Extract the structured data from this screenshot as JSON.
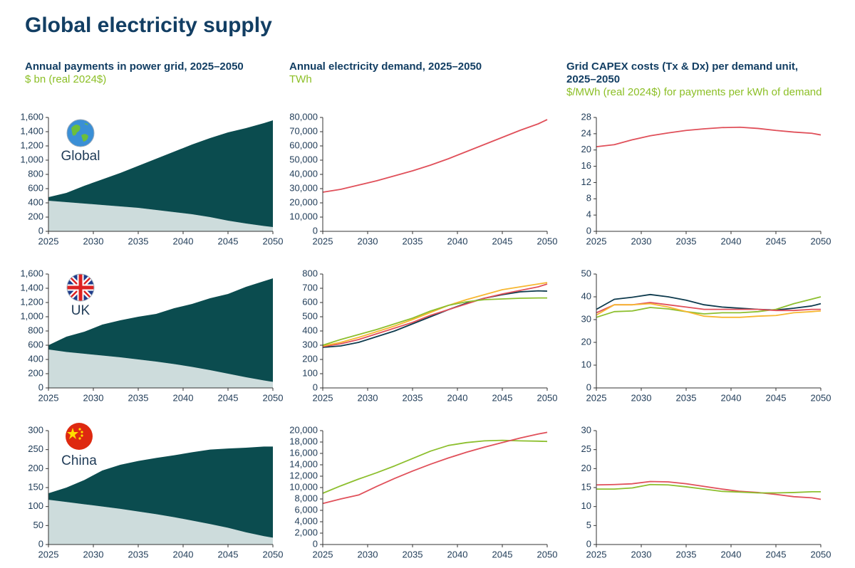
{
  "title": "Global electricity supply",
  "columns": [
    {
      "title": "Annual payments in power grid, 2025–2050",
      "subtitle": "$ bn (real 2024$)"
    },
    {
      "title": "Annual electricity demand, 2025–2050",
      "subtitle": "TWh"
    },
    {
      "title": "Grid CAPEX costs (Tx & Dx) per demand unit, 2025–2050",
      "subtitle": "$/MWh (real 2024$) for payments per kWh of demand"
    }
  ],
  "rows": [
    "Global",
    "UK",
    "China"
  ],
  "chart_data": [
    {
      "type": "area",
      "x": [
        2025,
        2027,
        2029,
        2031,
        2033,
        2035,
        2037,
        2039,
        2041,
        2043,
        2045,
        2047,
        2049,
        2050
      ],
      "xlim": [
        2025,
        2050
      ],
      "xticks": [
        2025,
        2030,
        2035,
        2040,
        2045,
        2050
      ],
      "ylim": [
        0,
        1600
      ],
      "yticks": [
        0,
        200,
        400,
        600,
        800,
        {
          "value": 1000,
          "label": "1,000"
        },
        {
          "value": 1200,
          "label": "1,200"
        },
        {
          "value": 1400,
          "label": "1,400"
        },
        {
          "value": 1600,
          "label": "1,600"
        }
      ],
      "series": [
        {
          "color": "#cddcdc",
          "values": [
            430,
            410,
            390,
            370,
            350,
            330,
            300,
            270,
            240,
            200,
            150,
            110,
            75,
            60
          ]
        },
        {
          "color": "#0b4c4f",
          "values": [
            50,
            130,
            250,
            360,
            470,
            590,
            720,
            850,
            980,
            1110,
            1240,
            1340,
            1445,
            1500
          ]
        }
      ]
    },
    {
      "type": "line",
      "x": [
        2025,
        2027,
        2029,
        2031,
        2033,
        2035,
        2037,
        2039,
        2041,
        2043,
        2045,
        2047,
        2049,
        2050
      ],
      "xlim": [
        2025,
        2050
      ],
      "xticks": [
        2025,
        2030,
        2035,
        2040,
        2045,
        2050
      ],
      "ylim": [
        0,
        80000
      ],
      "yticks": [
        0,
        {
          "value": 10000,
          "label": "10,000"
        },
        {
          "value": 20000,
          "label": "20,000"
        },
        {
          "value": 30000,
          "label": "30,000"
        },
        {
          "value": 40000,
          "label": "40,000"
        },
        {
          "value": 50000,
          "label": "50,000"
        },
        {
          "value": 60000,
          "label": "60,000"
        },
        {
          "value": 70000,
          "label": "70,000"
        },
        {
          "value": 80000,
          "label": "80,000"
        }
      ],
      "series": [
        {
          "color": "#e0505a",
          "values": [
            27500,
            29500,
            32500,
            35500,
            39000,
            42500,
            46500,
            51000,
            56000,
            61000,
            66000,
            71000,
            75500,
            78500
          ]
        }
      ]
    },
    {
      "type": "line",
      "x": [
        2025,
        2027,
        2029,
        2031,
        2033,
        2035,
        2037,
        2039,
        2041,
        2043,
        2045,
        2047,
        2049,
        2050
      ],
      "xlim": [
        2025,
        2050
      ],
      "xticks": [
        2025,
        2030,
        2035,
        2040,
        2045,
        2050
      ],
      "ylim": [
        0,
        28
      ],
      "yticks": [
        0,
        4,
        8,
        12,
        16,
        20,
        24,
        28
      ],
      "series": [
        {
          "color": "#e0505a",
          "values": [
            20.8,
            21.3,
            22.5,
            23.5,
            24.2,
            24.8,
            25.2,
            25.5,
            25.6,
            25.3,
            24.8,
            24.4,
            24.1,
            23.7
          ]
        }
      ]
    },
    {
      "type": "area",
      "x": [
        2025,
        2027,
        2029,
        2031,
        2033,
        2035,
        2037,
        2039,
        2041,
        2043,
        2045,
        2047,
        2049,
        2050
      ],
      "xlim": [
        2025,
        2050
      ],
      "xticks": [
        2025,
        2030,
        2035,
        2040,
        2045,
        2050
      ],
      "ylim": [
        0,
        1600
      ],
      "yticks": [
        0,
        200,
        400,
        600,
        800,
        {
          "value": 1000,
          "label": "1,000"
        },
        {
          "value": 1200,
          "label": "1,200"
        },
        {
          "value": 1400,
          "label": "1,400"
        },
        {
          "value": 1600,
          "label": "1,600"
        }
      ],
      "series": [
        {
          "color": "#cddcdc",
          "values": [
            540,
            505,
            480,
            455,
            430,
            400,
            370,
            335,
            295,
            250,
            200,
            150,
            105,
            85
          ]
        },
        {
          "color": "#0b4c4f",
          "values": [
            60,
            215,
            310,
            435,
            520,
            600,
            670,
            785,
            885,
            1010,
            1120,
            1270,
            1395,
            1455
          ]
        }
      ]
    },
    {
      "type": "line",
      "x": [
        2025,
        2027,
        2029,
        2031,
        2033,
        2035,
        2037,
        2039,
        2041,
        2043,
        2045,
        2047,
        2049,
        2050
      ],
      "xlim": [
        2025,
        2050
      ],
      "xticks": [
        2025,
        2030,
        2035,
        2040,
        2045,
        2050
      ],
      "ylim": [
        0,
        800
      ],
      "yticks": [
        0,
        100,
        200,
        300,
        400,
        500,
        600,
        700,
        800
      ],
      "series": [
        {
          "color": "#0d3a4d",
          "values": [
            285,
            295,
            320,
            360,
            400,
            450,
            500,
            550,
            595,
            630,
            655,
            675,
            682,
            680
          ]
        },
        {
          "color": "#e0505a",
          "values": [
            290,
            310,
            340,
            380,
            420,
            460,
            510,
            550,
            590,
            630,
            660,
            685,
            710,
            730
          ]
        },
        {
          "color": "#f7b731",
          "values": [
            295,
            320,
            355,
            395,
            435,
            480,
            530,
            580,
            620,
            655,
            690,
            710,
            730,
            740
          ]
        },
        {
          "color": "#8dbf2e",
          "values": [
            300,
            340,
            375,
            410,
            450,
            490,
            540,
            580,
            605,
            620,
            625,
            630,
            632,
            632
          ]
        }
      ]
    },
    {
      "type": "line",
      "x": [
        2025,
        2027,
        2029,
        2031,
        2033,
        2035,
        2037,
        2039,
        2041,
        2043,
        2045,
        2047,
        2049,
        2050
      ],
      "xlim": [
        2025,
        2050
      ],
      "xticks": [
        2025,
        2030,
        2035,
        2040,
        2045,
        2050
      ],
      "ylim": [
        0,
        50
      ],
      "yticks": [
        0,
        10,
        20,
        30,
        40,
        50
      ],
      "series": [
        {
          "color": "#0d3a4d",
          "values": [
            34.5,
            38.9,
            39.8,
            41,
            40,
            38.5,
            36.5,
            35.5,
            35,
            34.5,
            34.2,
            35,
            36,
            37
          ]
        },
        {
          "color": "#8dbf2e",
          "values": [
            31,
            33.5,
            33.8,
            35.3,
            34.7,
            33.5,
            32.5,
            33,
            33,
            33.5,
            34.5,
            37,
            39,
            40
          ]
        },
        {
          "color": "#e0505a",
          "values": [
            33,
            36.5,
            36.5,
            37.5,
            36.5,
            35.5,
            34.5,
            34.5,
            34.5,
            34.5,
            34,
            34,
            34.5,
            34.5
          ]
        },
        {
          "color": "#f7b731",
          "values": [
            32,
            36.5,
            36.5,
            37,
            35.5,
            33.5,
            31.5,
            31,
            31,
            31.5,
            31.8,
            33,
            33.5,
            33.8
          ]
        }
      ]
    },
    {
      "type": "area",
      "x": [
        2025,
        2027,
        2029,
        2031,
        2033,
        2035,
        2037,
        2039,
        2041,
        2043,
        2045,
        2047,
        2049,
        2050
      ],
      "xlim": [
        2025,
        2050
      ],
      "xticks": [
        2025,
        2030,
        2035,
        2040,
        2045,
        2050
      ],
      "ylim": [
        0,
        300
      ],
      "yticks": [
        0,
        50,
        100,
        150,
        200,
        250,
        300
      ],
      "series": [
        {
          "color": "#cddcdc",
          "values": [
            118,
            112,
            106,
            100,
            94,
            87,
            80,
            72,
            63,
            54,
            44,
            32,
            22,
            18
          ]
        },
        {
          "color": "#0b4c4f",
          "values": [
            17,
            38,
            64,
            95,
            116,
            133,
            148,
            163,
            180,
            196,
            209,
            223,
            236,
            240
          ]
        }
      ]
    },
    {
      "type": "line",
      "x": [
        2025,
        2027,
        2029,
        2031,
        2033,
        2035,
        2037,
        2039,
        2041,
        2043,
        2045,
        2047,
        2049,
        2050
      ],
      "xlim": [
        2025,
        2050
      ],
      "xticks": [
        2025,
        2030,
        2035,
        2040,
        2045,
        2050
      ],
      "ylim": [
        0,
        20000
      ],
      "yticks": [
        0,
        {
          "value": 2000,
          "label": "2,000"
        },
        {
          "value": 4000,
          "label": "4,000"
        },
        {
          "value": 6000,
          "label": "6,000"
        },
        {
          "value": 8000,
          "label": "8,000"
        },
        {
          "value": 10000,
          "label": "10,000"
        },
        {
          "value": 12000,
          "label": "12,000"
        },
        {
          "value": 14000,
          "label": "14,000"
        },
        {
          "value": 16000,
          "label": "16,000"
        },
        {
          "value": 18000,
          "label": "18,000"
        },
        {
          "value": 20000,
          "label": "20,000"
        }
      ],
      "series": [
        {
          "color": "#8dbf2e",
          "values": [
            9000,
            10300,
            11500,
            12600,
            13800,
            15100,
            16400,
            17400,
            17900,
            18200,
            18300,
            18200,
            18150,
            18100
          ]
        },
        {
          "color": "#e0505a",
          "values": [
            7200,
            8000,
            8700,
            10200,
            11600,
            12900,
            14100,
            15200,
            16200,
            17100,
            17900,
            18700,
            19400,
            19700
          ]
        }
      ]
    },
    {
      "type": "line",
      "x": [
        2025,
        2027,
        2029,
        2031,
        2033,
        2035,
        2037,
        2039,
        2041,
        2043,
        2045,
        2047,
        2049,
        2050
      ],
      "xlim": [
        2025,
        2050
      ],
      "xticks": [
        2025,
        2030,
        2035,
        2040,
        2045,
        2050
      ],
      "ylim": [
        0,
        30
      ],
      "yticks": [
        0,
        5,
        10,
        15,
        20,
        25,
        30
      ],
      "series": [
        {
          "color": "#e0505a",
          "values": [
            15.7,
            15.8,
            16,
            16.6,
            16.5,
            16,
            15.3,
            14.6,
            14,
            13.7,
            13.2,
            12.6,
            12.3,
            11.9
          ]
        },
        {
          "color": "#8dbf2e",
          "values": [
            14.6,
            14.6,
            14.9,
            15.8,
            15.7,
            15.2,
            14.6,
            14,
            13.8,
            13.6,
            13.6,
            13.7,
            13.9,
            13.9
          ]
        }
      ]
    }
  ]
}
